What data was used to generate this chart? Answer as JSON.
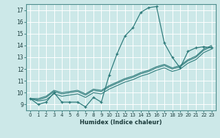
{
  "xlabel": "Humidex (Indice chaleur)",
  "ylabel": "",
  "bg_color": "#cce8e8",
  "grid_color": "#ffffff",
  "line_color": "#2d7a7a",
  "xlim": [
    -0.5,
    23.5
  ],
  "ylim": [
    8.5,
    17.5
  ],
  "xticks": [
    0,
    1,
    2,
    3,
    4,
    5,
    6,
    7,
    8,
    9,
    10,
    11,
    12,
    13,
    14,
    15,
    16,
    17,
    18,
    19,
    20,
    21,
    22,
    23
  ],
  "yticks": [
    9,
    10,
    11,
    12,
    13,
    14,
    15,
    16,
    17
  ],
  "series_main": [
    9.5,
    9.0,
    9.2,
    10.0,
    9.2,
    9.2,
    9.2,
    8.8,
    9.6,
    9.2,
    11.5,
    13.3,
    14.8,
    15.5,
    16.8,
    17.2,
    17.3,
    14.2,
    13.0,
    12.1,
    13.5,
    13.8,
    13.9,
    13.8
  ],
  "series_linear": [
    [
      9.5,
      9.3,
      9.4,
      9.9,
      9.7,
      9.8,
      9.9,
      9.6,
      10.0,
      9.9,
      10.3,
      10.6,
      10.9,
      11.1,
      11.4,
      11.6,
      11.9,
      12.1,
      11.8,
      12.0,
      12.5,
      12.8,
      13.4,
      13.7
    ],
    [
      9.5,
      9.4,
      9.6,
      10.1,
      9.9,
      10.0,
      10.1,
      9.8,
      10.2,
      10.1,
      10.5,
      10.8,
      11.1,
      11.3,
      11.6,
      11.8,
      12.1,
      12.3,
      12.0,
      12.2,
      12.7,
      13.0,
      13.6,
      13.9
    ],
    [
      9.5,
      9.5,
      9.7,
      10.2,
      10.0,
      10.1,
      10.2,
      9.9,
      10.3,
      10.2,
      10.6,
      10.9,
      11.2,
      11.4,
      11.7,
      11.9,
      12.2,
      12.4,
      12.1,
      12.3,
      12.8,
      13.1,
      13.7,
      14.0
    ]
  ]
}
